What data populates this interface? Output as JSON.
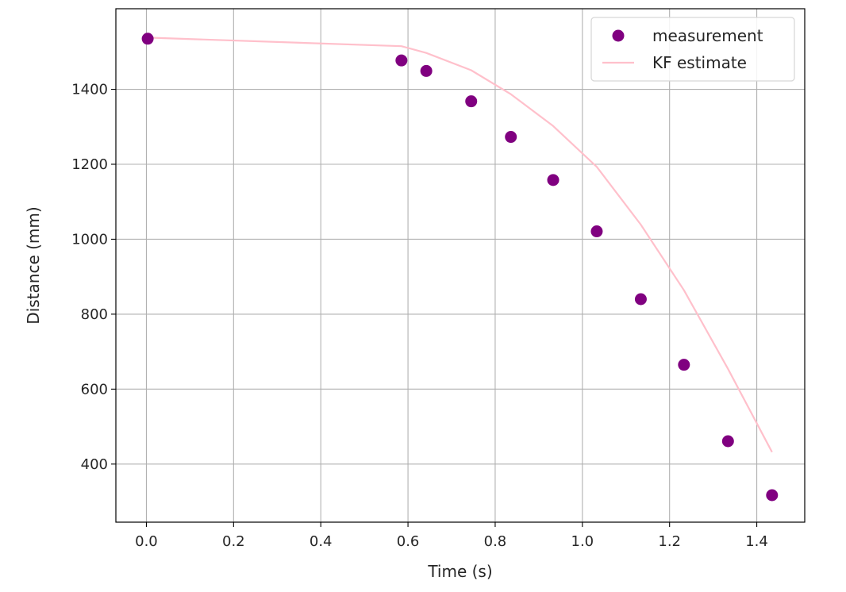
{
  "chart_data": {
    "type": "scatter",
    "xlabel": "Time (s)",
    "ylabel": "Distance (mm)",
    "xlim": [
      -0.07,
      1.51
    ],
    "ylim": [
      245,
      1615
    ],
    "x_ticks": [
      0.0,
      0.2,
      0.4,
      0.6,
      0.8,
      1.0,
      1.2,
      1.4
    ],
    "x_tick_labels": [
      "0.0",
      "0.2",
      "0.4",
      "0.6",
      "0.8",
      "1.0",
      "1.2",
      "1.4"
    ],
    "y_ticks": [
      400,
      600,
      800,
      1000,
      1200,
      1400
    ],
    "y_tick_labels": [
      "400",
      "600",
      "800",
      "1000",
      "1200",
      "1400"
    ],
    "grid": true,
    "legend_position": "top-right",
    "series": [
      {
        "name": "measurement",
        "kind": "scatter",
        "color": "#800080",
        "points": [
          [
            0.003,
            1535
          ],
          [
            0.585,
            1477
          ],
          [
            0.642,
            1449
          ],
          [
            0.745,
            1368
          ],
          [
            0.836,
            1273
          ],
          [
            0.933,
            1158
          ],
          [
            1.033,
            1021
          ],
          [
            1.134,
            840
          ],
          [
            1.233,
            665
          ],
          [
            1.334,
            461
          ],
          [
            1.435,
            317
          ]
        ]
      },
      {
        "name": "KF estimate",
        "kind": "line",
        "color": "#ffc0cb",
        "points": [
          [
            0.003,
            1538
          ],
          [
            0.585,
            1515
          ],
          [
            0.642,
            1497
          ],
          [
            0.745,
            1451
          ],
          [
            0.836,
            1387
          ],
          [
            0.933,
            1302
          ],
          [
            1.033,
            1193
          ],
          [
            1.134,
            1039
          ],
          [
            1.233,
            864
          ],
          [
            1.334,
            654
          ],
          [
            1.435,
            432
          ]
        ]
      }
    ]
  }
}
